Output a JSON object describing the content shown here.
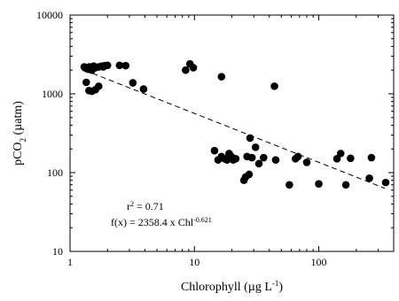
{
  "chart_data": {
    "type": "scatter",
    "xlabel": "Chlorophyll (µg L",
    "xlabel_sup": "-1",
    "xlabel_end": ")",
    "ylabel_pre": "pCO",
    "ylabel_sub": "2",
    "ylabel_post": " (µatm)",
    "x_scale": "log",
    "y_scale": "log",
    "xlim": [
      1,
      400
    ],
    "ylim": [
      10,
      10000
    ],
    "x_ticks": [
      {
        "value": 1,
        "label": "1"
      },
      {
        "value": 10,
        "label": "10"
      },
      {
        "value": 100,
        "label": "100"
      }
    ],
    "y_ticks": [
      {
        "value": 10,
        "label": "10"
      },
      {
        "value": 100,
        "label": "100"
      },
      {
        "value": 1000,
        "label": "1000"
      },
      {
        "value": 10000,
        "label": "10000"
      }
    ],
    "grid": false,
    "annotations": {
      "r2_pre": "r",
      "r2_sup": "2",
      "r2_post": " = 0.71",
      "fx_pre": "f(x) = 2358.4 x Chl",
      "fx_sup": "-0.621"
    },
    "fit": {
      "a": 2358.4,
      "b": -0.621,
      "x_range": [
        1.3,
        340
      ],
      "style": "dashed"
    },
    "points": [
      {
        "x": 1.3,
        "y": 2200
      },
      {
        "x": 1.32,
        "y": 2150
      },
      {
        "x": 1.36,
        "y": 2100
      },
      {
        "x": 1.4,
        "y": 2050
      },
      {
        "x": 1.43,
        "y": 2200
      },
      {
        "x": 1.48,
        "y": 2180
      },
      {
        "x": 1.5,
        "y": 2000
      },
      {
        "x": 1.55,
        "y": 2250
      },
      {
        "x": 1.6,
        "y": 2150
      },
      {
        "x": 1.7,
        "y": 2200
      },
      {
        "x": 1.8,
        "y": 2250
      },
      {
        "x": 1.85,
        "y": 2200
      },
      {
        "x": 1.9,
        "y": 2280
      },
      {
        "x": 2.0,
        "y": 2300
      },
      {
        "x": 2.5,
        "y": 2300
      },
      {
        "x": 2.8,
        "y": 2280
      },
      {
        "x": 1.35,
        "y": 1400
      },
      {
        "x": 1.42,
        "y": 1100
      },
      {
        "x": 1.5,
        "y": 1080
      },
      {
        "x": 1.6,
        "y": 1130
      },
      {
        "x": 1.7,
        "y": 1250
      },
      {
        "x": 3.2,
        "y": 1380
      },
      {
        "x": 3.9,
        "y": 1150
      },
      {
        "x": 8.5,
        "y": 2000
      },
      {
        "x": 9.2,
        "y": 2400
      },
      {
        "x": 9.8,
        "y": 2150
      },
      {
        "x": 16.5,
        "y": 1650
      },
      {
        "x": 44,
        "y": 1250
      },
      {
        "x": 14.5,
        "y": 190
      },
      {
        "x": 15.5,
        "y": 145
      },
      {
        "x": 16.5,
        "y": 160
      },
      {
        "x": 17.5,
        "y": 150
      },
      {
        "x": 18.3,
        "y": 145
      },
      {
        "x": 19,
        "y": 175
      },
      {
        "x": 19.8,
        "y": 160
      },
      {
        "x": 20.5,
        "y": 145
      },
      {
        "x": 21.5,
        "y": 150
      },
      {
        "x": 25,
        "y": 80
      },
      {
        "x": 25.8,
        "y": 88
      },
      {
        "x": 26.5,
        "y": 160
      },
      {
        "x": 27.5,
        "y": 95
      },
      {
        "x": 28,
        "y": 275
      },
      {
        "x": 29,
        "y": 155
      },
      {
        "x": 31,
        "y": 210
      },
      {
        "x": 33,
        "y": 130
      },
      {
        "x": 36,
        "y": 155
      },
      {
        "x": 45,
        "y": 145
      },
      {
        "x": 58,
        "y": 70
      },
      {
        "x": 65,
        "y": 150
      },
      {
        "x": 68,
        "y": 160
      },
      {
        "x": 80,
        "y": 135
      },
      {
        "x": 100,
        "y": 72
      },
      {
        "x": 140,
        "y": 150
      },
      {
        "x": 150,
        "y": 175
      },
      {
        "x": 165,
        "y": 70
      },
      {
        "x": 180,
        "y": 152
      },
      {
        "x": 255,
        "y": 85
      },
      {
        "x": 265,
        "y": 155
      },
      {
        "x": 345,
        "y": 75
      }
    ]
  }
}
